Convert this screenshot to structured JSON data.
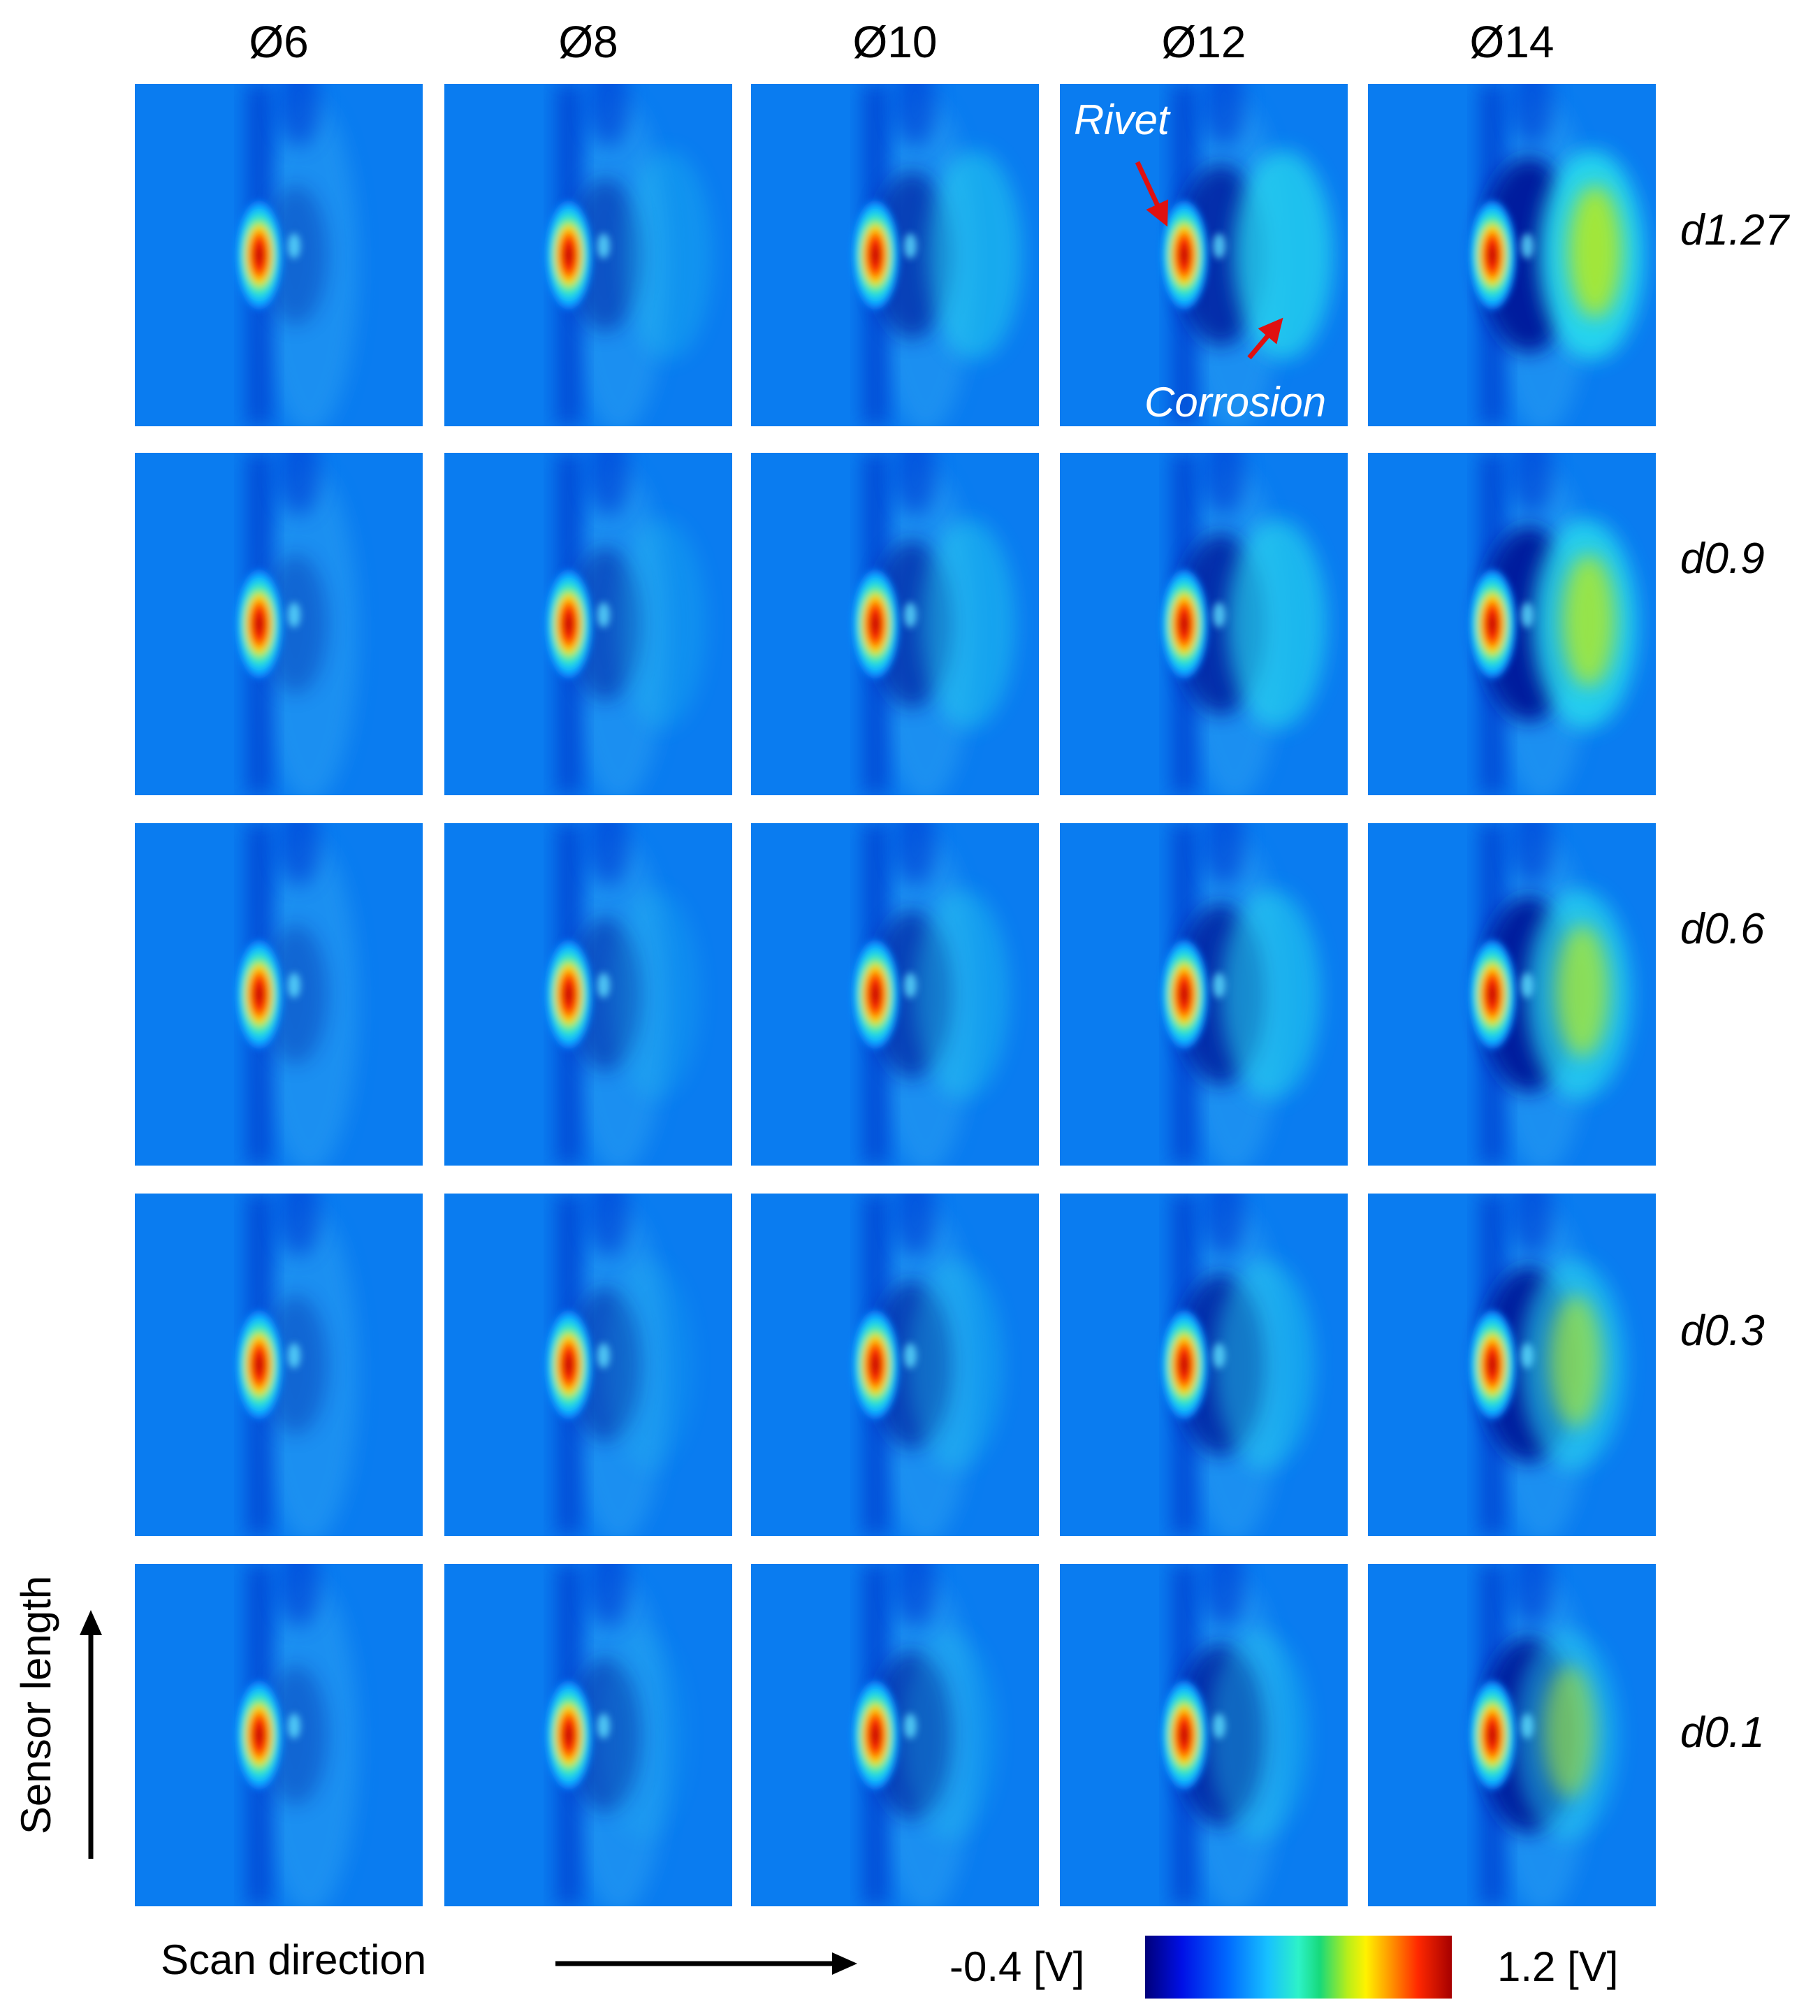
{
  "columns": [
    "Ø6",
    "Ø8",
    "Ø10",
    "Ø12",
    "Ø14"
  ],
  "rows": [
    "d1.27",
    "d0.9",
    "d0.6",
    "d0.3",
    "d0.1"
  ],
  "annotations": {
    "rivet": "Rivet",
    "corrosion": "Corrosion"
  },
  "axes": {
    "vertical": "Sensor length",
    "horizontal": "Scan direction"
  },
  "colorbar": {
    "min_label": "-0.4 [V]",
    "max_label": "1.2 [V]"
  },
  "colors": {
    "background_field": "#0a7cf0",
    "rivet_peak": "#d40000",
    "rivet_dark_trough": "#001a9e",
    "corrosion_signal": "#2af0c0",
    "annotation_arrow": "#e01010",
    "annotation_text": "#ffffff"
  }
}
